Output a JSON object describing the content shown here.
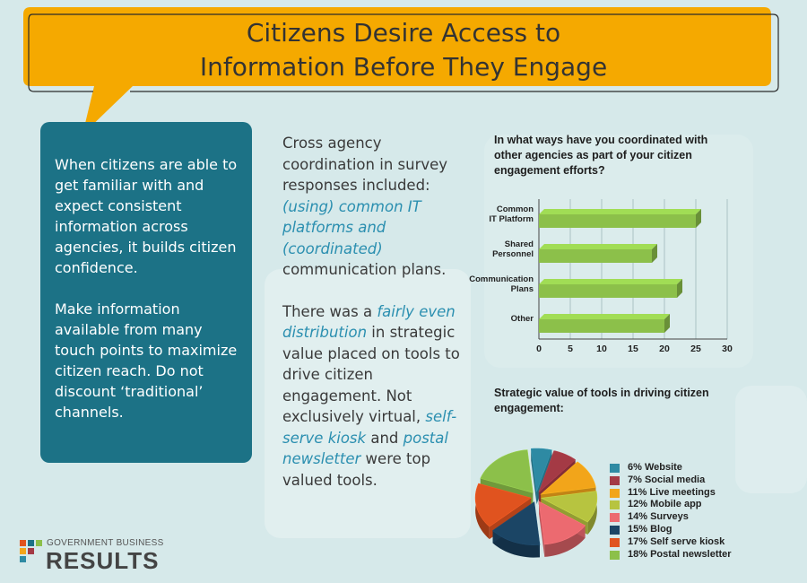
{
  "title": {
    "line1": "Citizens Desire Access to",
    "line2": "Information Before They Engage"
  },
  "left_panel": {
    "para1": "When citizens are able to get familiar with and expect consistent information across agencies, it builds citizen confidence.",
    "para2": "Make information available from many touch points to maximize citizen reach. Do not discount ‘traditional’ channels."
  },
  "middle": {
    "p1_a": "Cross agency coordination in survey responses included: ",
    "p1_b": "(using) common IT platforms and (coordinated)",
    "p1_c": " communication plans.",
    "p2_a": "There was a ",
    "p2_b": "fairly even distribution",
    "p2_c": " in strategic value placed on tools to drive citizen engagement. Not exclusively virtual, ",
    "p2_d": "self-serve kiosk",
    "p2_e": " and ",
    "p2_f": "postal newsletter",
    "p2_g": " were top valued tools."
  },
  "chart_data": [
    {
      "type": "bar",
      "orientation": "horizontal",
      "title": "In what ways have you coordinated with other agencies as part of your citizen engagement efforts?",
      "categories": [
        "Common IT Platform",
        "Shared Personnel",
        "Communication Plans",
        "Other"
      ],
      "values": [
        25,
        18,
        22,
        20
      ],
      "xlim": [
        0,
        30
      ],
      "xticks": [
        "0",
        "5",
        "10",
        "15",
        "20",
        "25",
        "30"
      ],
      "color": "#8cc04a"
    },
    {
      "type": "pie",
      "title": "Strategic value of tools in driving citizen engagement:",
      "series": [
        {
          "label": "6% Website",
          "value": 6,
          "color": "#2e8aa3"
        },
        {
          "label": "7% Social media",
          "value": 7,
          "color": "#a43a45"
        },
        {
          "label": "11% Live meetings",
          "value": 11,
          "color": "#f2a51a"
        },
        {
          "label": "12% Mobile app",
          "value": 12,
          "color": "#b7c440"
        },
        {
          "label": "14% Surveys",
          "value": 14,
          "color": "#ec6a70"
        },
        {
          "label": "15% Blog",
          "value": 15,
          "color": "#1b4565"
        },
        {
          "label": "17% Self serve kiosk",
          "value": 17,
          "color": "#e0531f"
        },
        {
          "label": "18% Postal newsletter",
          "value": 18,
          "color": "#8cc04a"
        }
      ]
    }
  ],
  "logo": {
    "small": "GOVERNMENT BUSINESS",
    "big": "RESULTS"
  }
}
